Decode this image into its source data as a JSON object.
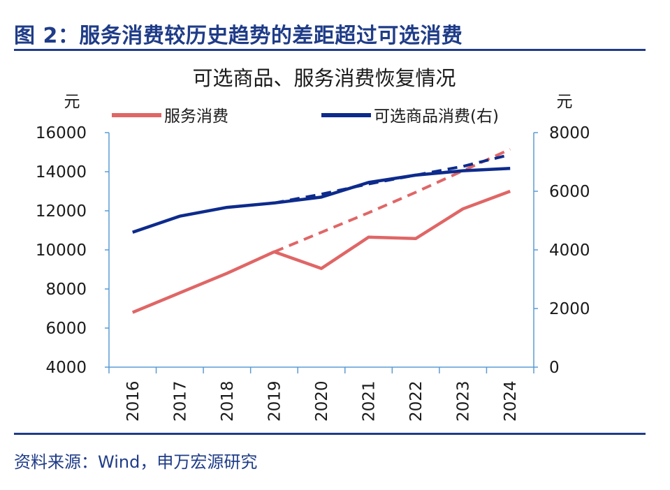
{
  "figure": {
    "title": "图 2：服务消费较历史趋势的差距超过可选消费",
    "source": "资料来源：Wind，申万宏源研究"
  },
  "chart_data": {
    "type": "line",
    "title": "可选商品、服务消费恢复情况",
    "categories": [
      "2016",
      "2017",
      "2018",
      "2019",
      "2020",
      "2021",
      "2022",
      "2023",
      "2024"
    ],
    "y_left": {
      "unit": "元",
      "ylim": [
        4000,
        16000
      ],
      "ticks": [
        4000,
        6000,
        8000,
        10000,
        12000,
        14000,
        16000
      ]
    },
    "y_right": {
      "unit": "元",
      "ylim": [
        0,
        8000
      ],
      "ticks": [
        0,
        2000,
        4000,
        6000,
        8000
      ]
    },
    "legend_position": "top",
    "series": [
      {
        "name": "服务消费",
        "axis": "left",
        "color": "#e06666",
        "style": "solid",
        "values": [
          6800,
          7800,
          8800,
          9900,
          9050,
          10650,
          10580,
          12100,
          13000
        ]
      },
      {
        "name": "可选商品消费(右)",
        "axis": "right",
        "color": "#0d2b8c",
        "style": "solid",
        "values": [
          4600,
          5150,
          5450,
          5600,
          5800,
          6300,
          6550,
          6700,
          6780
        ]
      }
    ],
    "trend_lines": [
      {
        "series": "服务消费",
        "axis": "left",
        "color": "#e06666",
        "style": "dashed",
        "x": [
          "2019",
          "2020",
          "2021",
          "2022",
          "2023",
          "2024"
        ],
        "values": [
          9900,
          10900,
          11900,
          12950,
          14050,
          15150
        ]
      },
      {
        "series": "可选商品消费(右)",
        "axis": "right",
        "color": "#0d2b8c",
        "style": "dashed",
        "x": [
          "2019",
          "2020",
          "2021",
          "2022",
          "2023",
          "2024"
        ],
        "values": [
          5600,
          5900,
          6250,
          6550,
          6850,
          7250
        ]
      }
    ],
    "grid": false
  }
}
